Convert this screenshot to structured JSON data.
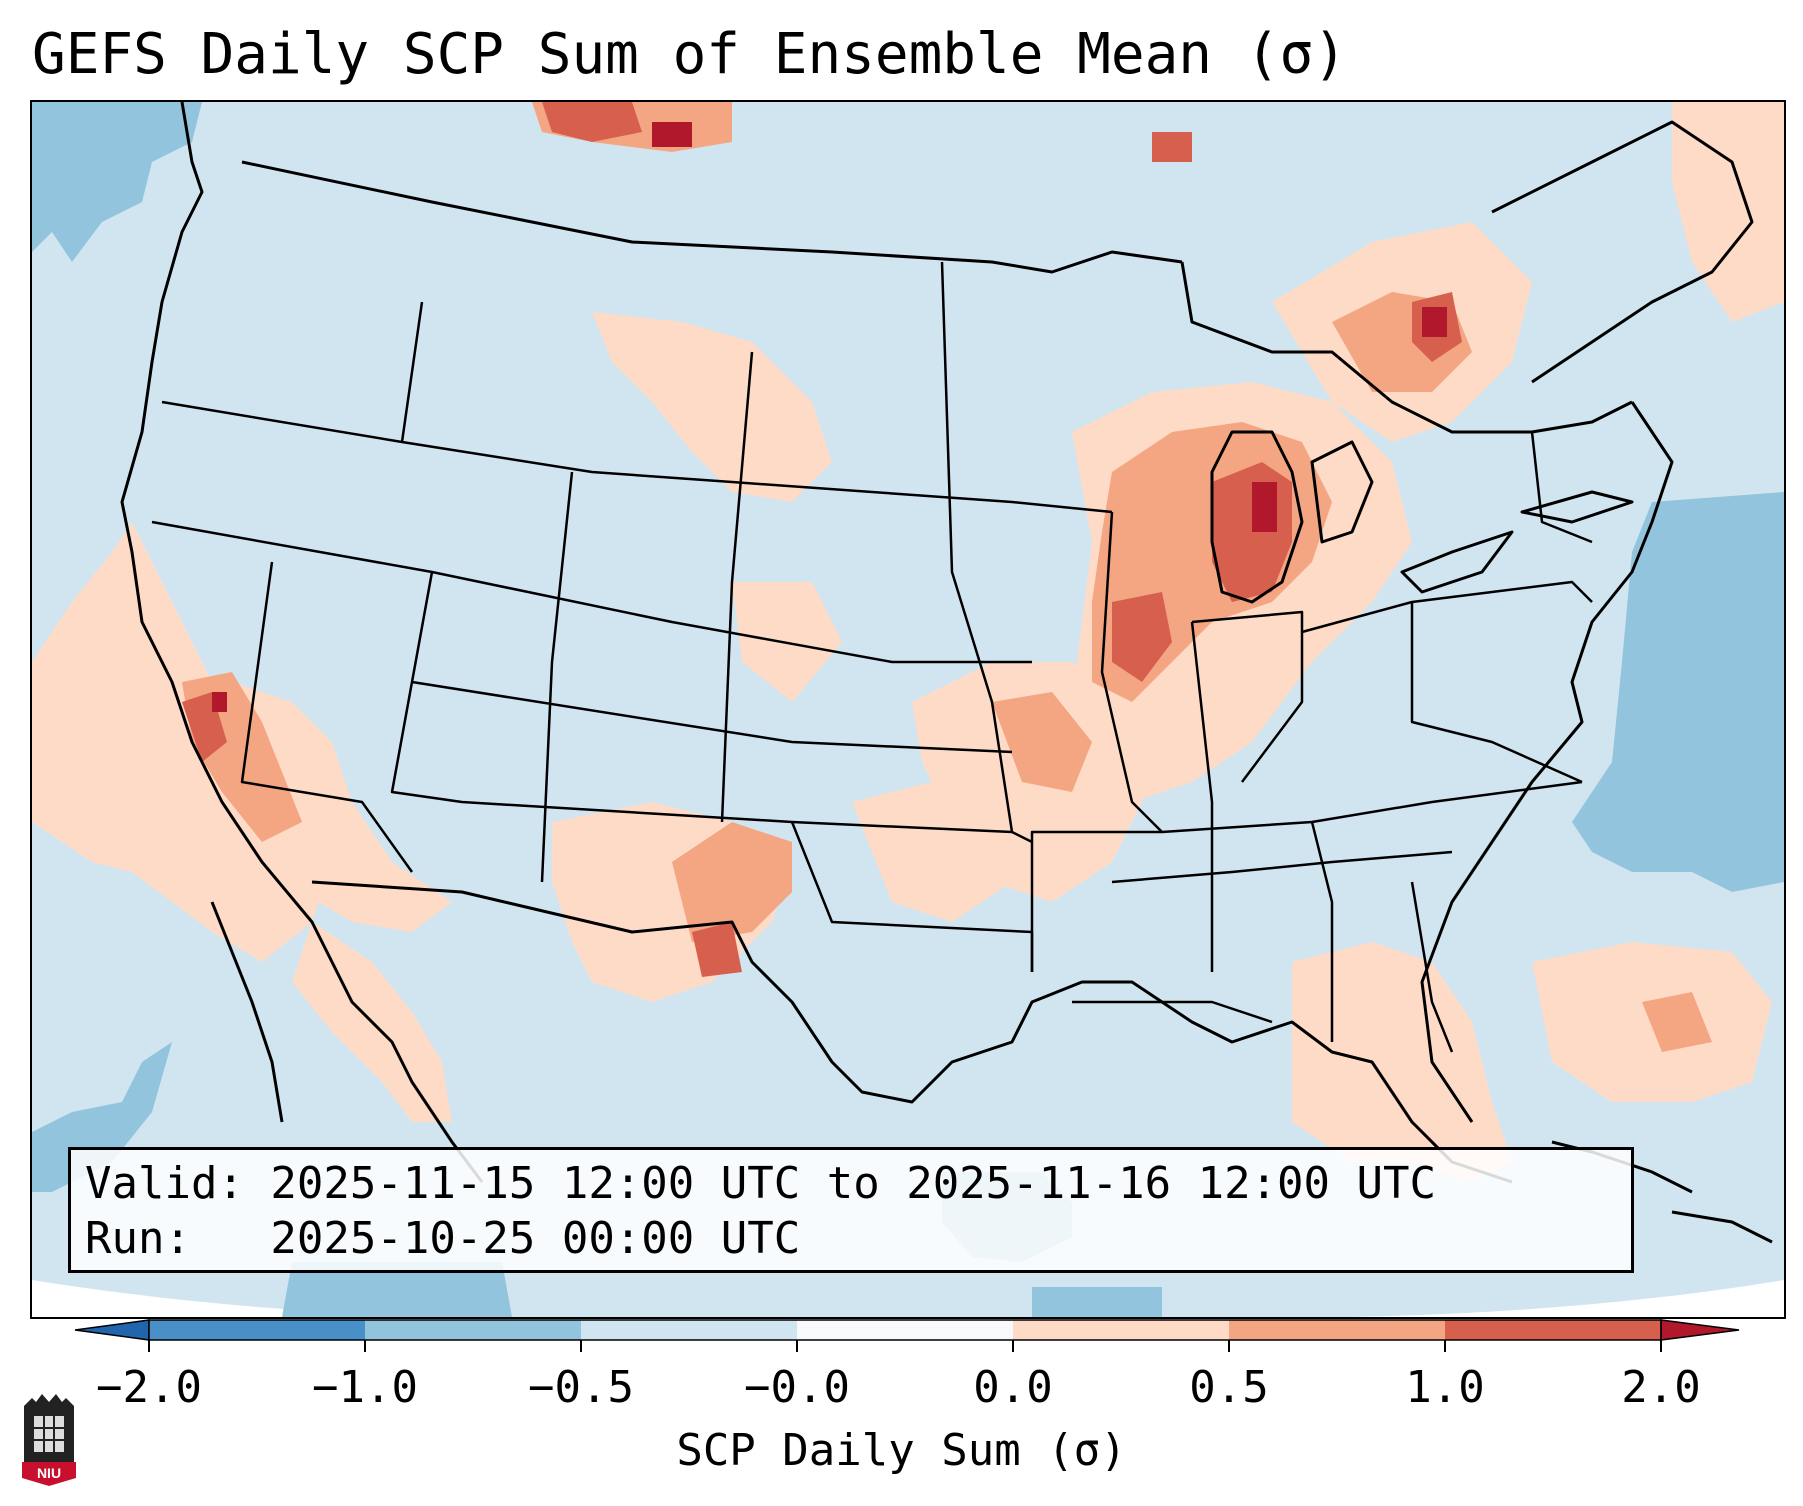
{
  "title": "GEFS Daily SCP Sum of Ensemble Mean (σ)",
  "info": {
    "valid_line": "Valid: 2025-11-15 12:00 UTC to 2025-11-16 12:00 UTC",
    "run_line": "Run:   2025-10-25 00:00 UTC"
  },
  "colorbar": {
    "label": "SCP Daily Sum (σ)",
    "ticks": [
      "−2.0",
      "−1.0",
      "−0.5",
      "−0.0",
      "0.0",
      "0.5",
      "1.0",
      "2.0"
    ],
    "colors": [
      "#4a90c8",
      "#92c4de",
      "#d1e5f0",
      "#f7f9fb",
      "#fddbc7",
      "#f4a582",
      "#d6604d",
      "#b2182b"
    ]
  },
  "map": {
    "background_color": "#d1e5f0",
    "positive_regions": [
      {
        "area": "Great Lakes / Michigan / Indiana",
        "level": "high"
      },
      {
        "area": "Ontario",
        "level": "high"
      },
      {
        "area": "Central California",
        "level": "medium"
      },
      {
        "area": "Eastern New Mexico / West Texas",
        "level": "medium"
      },
      {
        "area": "Mississippi Valley / Missouri",
        "level": "medium"
      },
      {
        "area": "Northern Plains / Montana",
        "level": "low"
      },
      {
        "area": "Florida / Gulf",
        "level": "low"
      },
      {
        "area": "Western Atlantic",
        "level": "low"
      }
    ],
    "negative_regions": [
      {
        "area": "Western Atlantic off Mid-Atlantic coast",
        "level": "low"
      },
      {
        "area": "Pacific off Pacific Northwest",
        "level": "low"
      },
      {
        "area": "Eastern Pacific southwest",
        "level": "low"
      }
    ]
  },
  "logo": {
    "text": "NIU"
  }
}
